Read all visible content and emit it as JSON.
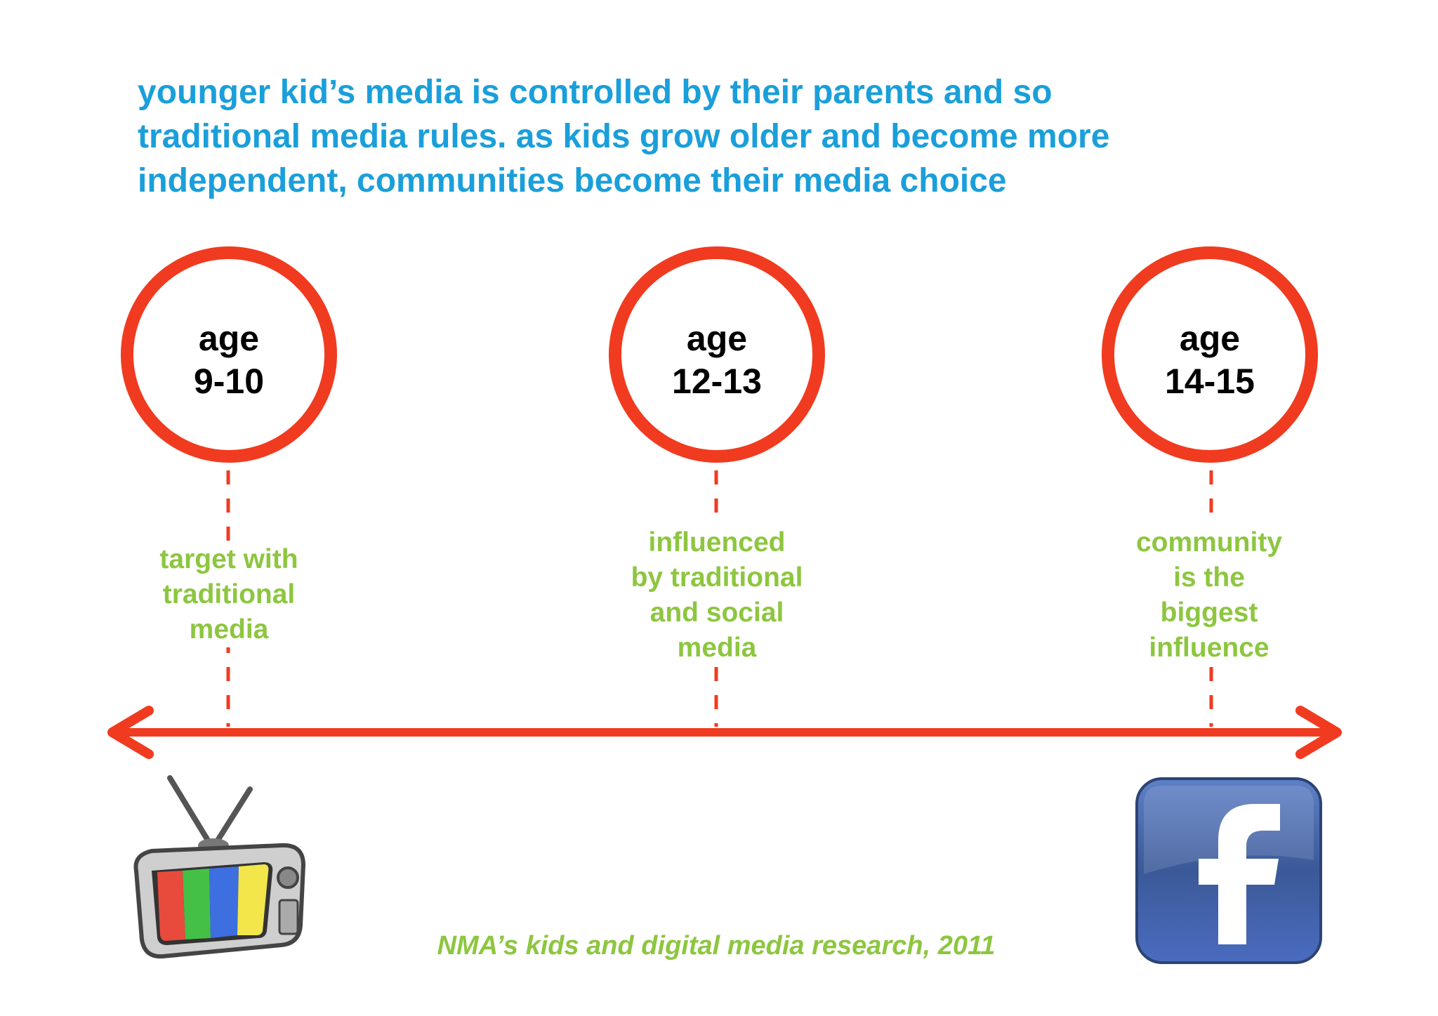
{
  "headline": {
    "line1": "younger kid’s media is controlled by their parents and so",
    "line2": "traditional media rules. as kids grow older and become more",
    "line3": "independent, communities become their media choice"
  },
  "stages": [
    {
      "age_label": "age",
      "age_range": "9-10",
      "note_lines": [
        "target with",
        "traditional",
        "media"
      ]
    },
    {
      "age_label": "age",
      "age_range": "12-13",
      "note_lines": [
        "influenced",
        "by traditional",
        "and social",
        "media"
      ]
    },
    {
      "age_label": "age",
      "age_range": "14-15",
      "note_lines": [
        "community",
        "is the",
        "biggest",
        "influence"
      ]
    }
  ],
  "icons": {
    "left": "television-icon",
    "right": "facebook-icon"
  },
  "citation": "NMA’s kids and digital media research, 2011",
  "colors": {
    "headline": "#1a9fda",
    "accent_red": "#f03b20",
    "note_green": "#8dc63f",
    "facebook_blue": "#3b5998"
  }
}
